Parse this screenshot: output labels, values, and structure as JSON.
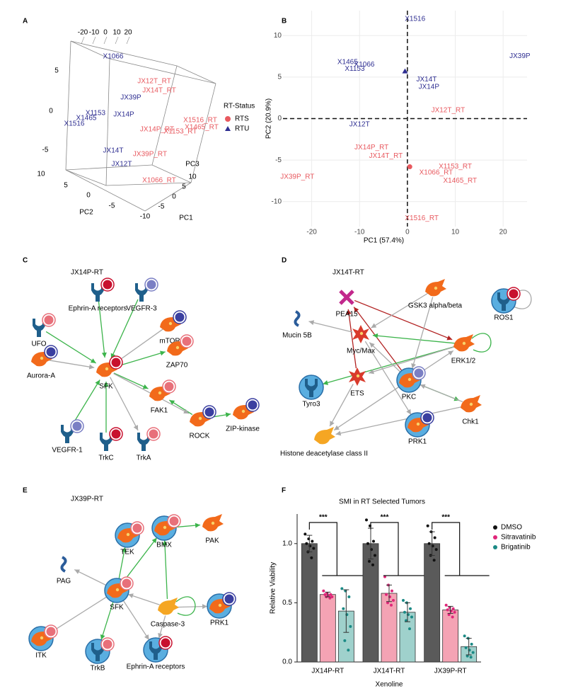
{
  "panel_labels": [
    "A",
    "B",
    "C",
    "D",
    "E",
    "F"
  ],
  "panel_a": {
    "type": "scatter3d-labels",
    "rtu_labels": [
      "X1066",
      "JX39P",
      "X1153",
      "X1465",
      "JX14P",
      "X1516",
      "JX14T",
      "JX12T"
    ],
    "rts_labels": [
      "JX12T_RT",
      "JX14T_RT",
      "X1516_RT",
      "X1465_RT",
      "JX14P_RT",
      "X1153_RT",
      "JX39P_RT",
      "X1066_RT"
    ],
    "axis_titles": [
      "PC1",
      "PC2",
      "PC3"
    ],
    "top_ticks": [
      -20,
      -10,
      0,
      10,
      20
    ],
    "pc3_ticks": [
      5,
      0,
      -5
    ],
    "pc2_ticks": [
      10,
      5,
      0,
      -5
    ],
    "pc1_ticks": [
      10,
      5,
      0,
      -5,
      -10
    ],
    "legend": {
      "title": "RT-Status",
      "entries": [
        {
          "name": "RTS",
          "color": "#e8595f",
          "marker": "circle"
        },
        {
          "name": "RTU",
          "color": "#2e2e91",
          "marker": "triangle"
        }
      ]
    }
  },
  "chart_data": [
    {
      "type": "scatter",
      "xlabel": "PC1 (57.4%)",
      "ylabel": "PC2 (20.9%)",
      "xlim": [
        -26,
        25
      ],
      "ylim": [
        -13,
        13
      ],
      "xticks": [
        -20,
        -10,
        0,
        10,
        20
      ],
      "yticks": [
        -10,
        -5,
        0,
        5,
        10
      ],
      "grid": true,
      "zero_lines": "dashed",
      "series": [
        {
          "color": "#2e2e91",
          "marker": "triangle",
          "labels": [
            "X1516",
            "X1465",
            "X1066",
            "X1153",
            "JX14T",
            "JX14P",
            "JX12T",
            "JX39P"
          ],
          "x": [
            1.6,
            -12.5,
            -9,
            -11,
            4,
            4.5,
            -10,
            23.5
          ],
          "y": [
            12,
            6.8,
            6.5,
            6,
            4.7,
            3.8,
            -0.7,
            7.5
          ],
          "centroid": [
            -0.5,
            5.7
          ]
        },
        {
          "color": "#e8595f",
          "marker": "circle",
          "labels": [
            "JX12T_RT",
            "JX14P_RT",
            "JX14T_RT",
            "X1153_RT",
            "X1066_RT",
            "X1465_RT",
            "JX39P_RT",
            "X1516_RT"
          ],
          "x": [
            8.5,
            -7.5,
            -4.5,
            10,
            6,
            11,
            -23,
            3
          ],
          "y": [
            1,
            -3.5,
            -4.5,
            -5.8,
            -6.5,
            -7.5,
            -7,
            -12
          ],
          "centroid": [
            0.5,
            -5.8
          ]
        }
      ]
    },
    {
      "type": "bar",
      "title": "SMI in RT Selected Tumors",
      "xlabel": "Xenoline",
      "ylabel": "Relative Viability",
      "categories": [
        "JX14P-RT",
        "JX14T-RT",
        "JX39P-RT"
      ],
      "ylim": [
        0,
        1.25
      ],
      "yticks": [
        {
          "value": 0,
          "label": "0.0"
        },
        {
          "value": 0.5,
          "label": "0.5"
        },
        {
          "value": 1,
          "label": "1.0"
        }
      ],
      "legend": "upper right",
      "annotations": [
        "***",
        "***",
        "***"
      ],
      "series": [
        {
          "name": "DMSO",
          "color": "#5a5a5a",
          "point_color": "#111111",
          "values": [
            1.0,
            1.0,
            1.0
          ],
          "errors": [
            0.07,
            0.13,
            0.1
          ],
          "points": [
            [
              1.08,
              1.04,
              1.02,
              1.0,
              0.98,
              0.96,
              0.93,
              0.88
            ],
            [
              1.2,
              1.15,
              1.02,
              1.0,
              0.95,
              0.9,
              0.85,
              0.82
            ],
            [
              1.15,
              1.1,
              1.05,
              1.0,
              0.98,
              0.95,
              0.9,
              0.86
            ]
          ]
        },
        {
          "name": "Sitravatinib",
          "color": "#f4a3b4",
          "point_color": "#e0267a",
          "values": [
            0.57,
            0.58,
            0.44
          ],
          "errors": [
            0.02,
            0.07,
            0.03
          ],
          "points": [
            [
              0.6,
              0.58,
              0.57,
              0.57,
              0.56,
              0.55,
              0.55,
              0.54
            ],
            [
              0.72,
              0.65,
              0.6,
              0.57,
              0.55,
              0.52,
              0.5,
              0.48
            ],
            [
              0.48,
              0.46,
              0.45,
              0.44,
              0.43,
              0.42,
              0.4,
              0.38
            ]
          ]
        },
        {
          "name": "Brigatinib",
          "color": "#9fd1cc",
          "point_color": "#1b8a85",
          "values": [
            0.43,
            0.42,
            0.13
          ],
          "errors": [
            0.18,
            0.08,
            0.07
          ],
          "points": [
            [
              0.62,
              0.6,
              0.55,
              0.45,
              0.4,
              0.3,
              0.18,
              0.1
            ],
            [
              0.52,
              0.5,
              0.45,
              0.42,
              0.4,
              0.38,
              0.35,
              0.28
            ],
            [
              0.22,
              0.2,
              0.15,
              0.12,
              0.1,
              0.08,
              0.05,
              0.04
            ]
          ]
        }
      ]
    }
  ],
  "shape_colors": {
    "receptor": "#1f5f8b",
    "kinase": "#f26a1b",
    "kinase-light": "#f5a623",
    "star": "#d93a2b",
    "wavy": "#2b5c9a",
    "cross": "#c2288c"
  },
  "networks": [
    {
      "title": "JX14P-RT",
      "nodes": [
        {
          "label": "UFO",
          "shape": "receptor",
          "badge": "#e8707a",
          "halo": false
        },
        {
          "label": "Ephrin-A receptors",
          "shape": "receptor",
          "badge": "#c8102e",
          "halo": false
        },
        {
          "label": "VEGFR-3",
          "shape": "receptor",
          "badge": "#7a7fc4",
          "halo": false
        },
        {
          "label": "mTOR",
          "shape": "kinase",
          "badge": "#3a3fa0",
          "halo": false
        },
        {
          "label": "ZAP70",
          "shape": "kinase",
          "badge": "#e8707a",
          "halo": false
        },
        {
          "label": "Aurora-A",
          "shape": "kinase",
          "badge": "#3a3fa0",
          "halo": false
        },
        {
          "label": "SFK",
          "shape": "kinase",
          "badge": "#c8102e",
          "halo": false
        },
        {
          "label": "FAK1",
          "shape": "kinase",
          "badge": "#e8707a",
          "halo": false
        },
        {
          "label": "ROCK",
          "shape": "kinase",
          "badge": "#3a3fa0",
          "halo": false
        },
        {
          "label": "ZIP-kinase",
          "shape": "kinase",
          "badge": "#3a3fa0",
          "halo": false
        },
        {
          "label": "VEGFR-1",
          "shape": "receptor",
          "badge": "#7a7fc4",
          "halo": false
        },
        {
          "label": "TrkC",
          "shape": "receptor",
          "badge": "#c8102e",
          "halo": false
        },
        {
          "label": "TrkA",
          "shape": "receptor",
          "badge": "#e8707a",
          "halo": false
        }
      ],
      "edges": [
        {
          "from": 0,
          "to": 6,
          "color": "#3cb44b"
        },
        {
          "from": 1,
          "to": 6,
          "color": "#3cb44b"
        },
        {
          "from": 2,
          "to": 6,
          "color": "#3cb44b"
        },
        {
          "from": 3,
          "to": 6,
          "color": "#aaaaaa"
        },
        {
          "from": 6,
          "to": 4,
          "color": "#3cb44b"
        },
        {
          "from": 5,
          "to": 6,
          "color": "#aaaaaa"
        },
        {
          "from": 6,
          "to": 7,
          "color": "#3cb44b"
        },
        {
          "from": 8,
          "to": 7,
          "color": "#3cb44b"
        },
        {
          "from": 8,
          "to": 9,
          "color": "#3cb44b"
        },
        {
          "from": 10,
          "to": 6,
          "color": "#3cb44b"
        },
        {
          "from": 11,
          "to": 6,
          "color": "#3cb44b"
        },
        {
          "from": 6,
          "to": 12,
          "color": "#aaaaaa"
        },
        {
          "from": 6,
          "to": 8,
          "color": "#aaaaaa"
        }
      ]
    },
    {
      "title": "JX14T-RT",
      "nodes": [
        {
          "label": "PEA15",
          "shape": "cross",
          "badge": null,
          "halo": false
        },
        {
          "label": "GSK3 alpha/beta",
          "shape": "kinase",
          "badge": null,
          "halo": false
        },
        {
          "label": "ROS1",
          "shape": "receptor",
          "badge": "#c8102e",
          "halo": true
        },
        {
          "label": "Mucin 5B",
          "shape": "wavy",
          "badge": null,
          "halo": false
        },
        {
          "label": "Myc/Max",
          "shape": "star",
          "badge": null,
          "halo": false
        },
        {
          "label": "ERK1/2",
          "shape": "kinase",
          "badge": null,
          "halo": false
        },
        {
          "label": "ETS",
          "shape": "star",
          "badge": null,
          "halo": false
        },
        {
          "label": "PKC",
          "shape": "kinase",
          "badge": "#7a7fc4",
          "halo": true
        },
        {
          "label": "Tyro3",
          "shape": "receptor",
          "badge": null,
          "halo": true
        },
        {
          "label": "Chk1",
          "shape": "kinase",
          "badge": null,
          "halo": false
        },
        {
          "label": "Histone deacetylase class II",
          "shape": "kinase-light",
          "badge": null,
          "halo": false
        },
        {
          "label": "PRK1",
          "shape": "kinase",
          "badge": "#3a3fa0",
          "halo": true
        }
      ],
      "edges": [
        {
          "from": 0,
          "to": 5,
          "color": "#b22222"
        },
        {
          "from": 7,
          "to": 0,
          "color": "#b22222"
        },
        {
          "from": 6,
          "to": 0,
          "color": "#b22222"
        },
        {
          "from": 5,
          "to": 4,
          "color": "#3cb44b"
        },
        {
          "from": 5,
          "to": 8,
          "color": "#3cb44b"
        },
        {
          "from": 1,
          "to": 4,
          "color": "#aaaaaa"
        },
        {
          "from": 1,
          "to": 7,
          "color": "#aaaaaa"
        },
        {
          "from": 4,
          "to": 3,
          "color": "#aaaaaa"
        },
        {
          "from": 7,
          "to": 4,
          "color": "#aaaaaa"
        },
        {
          "from": 4,
          "to": 11,
          "color": "#aaaaaa"
        },
        {
          "from": 7,
          "to": 10,
          "color": "#aaaaaa"
        },
        {
          "from": 6,
          "to": 10,
          "color": "#aaaaaa"
        },
        {
          "from": 9,
          "to": 10,
          "color": "#aaaaaa"
        },
        {
          "from": 7,
          "to": 9,
          "color": "#3cb44b"
        },
        {
          "from": 9,
          "to": 7,
          "color": "#aaaaaa"
        },
        {
          "from": 5,
          "to": 5,
          "color": "#3cb44b"
        },
        {
          "from": 2,
          "to": 2,
          "color": "#aaaaaa"
        },
        {
          "from": 5,
          "to": 6,
          "color": "#aaaaaa"
        },
        {
          "from": 7,
          "to": 5,
          "color": "#aaaaaa"
        }
      ]
    },
    {
      "title": "JX39P-RT",
      "nodes": [
        {
          "label": "TEK",
          "shape": "kinase",
          "badge": "#e8707a",
          "halo": true
        },
        {
          "label": "BMX",
          "shape": "kinase",
          "badge": "#e8707a",
          "halo": true
        },
        {
          "label": "PAK",
          "shape": "kinase",
          "badge": null,
          "halo": false
        },
        {
          "label": "PAG",
          "shape": "wavy",
          "badge": null,
          "halo": false
        },
        {
          "label": "SFK",
          "shape": "kinase",
          "badge": "#e8707a",
          "halo": true
        },
        {
          "label": "Caspase-3",
          "shape": "kinase-light",
          "badge": null,
          "halo": false
        },
        {
          "label": "PRK1",
          "shape": "kinase",
          "badge": "#3a3fa0",
          "halo": true
        },
        {
          "label": "ITK",
          "shape": "kinase",
          "badge": "#e8707a",
          "halo": true
        },
        {
          "label": "TrkB",
          "shape": "receptor",
          "badge": "#e8707a",
          "halo": true
        },
        {
          "label": "Ephrin-A receptors",
          "shape": "receptor",
          "badge": "#c8102e",
          "halo": true
        }
      ],
      "edges": [
        {
          "from": 4,
          "to": 0,
          "color": "#3cb44b"
        },
        {
          "from": 4,
          "to": 1,
          "color": "#3cb44b"
        },
        {
          "from": 1,
          "to": 2,
          "color": "#3cb44b"
        },
        {
          "from": 4,
          "to": 3,
          "color": "#aaaaaa"
        },
        {
          "from": 5,
          "to": 1,
          "color": "#3cb44b"
        },
        {
          "from": 5,
          "to": 4,
          "color": "#aaaaaa"
        },
        {
          "from": 5,
          "to": 6,
          "color": "#aaaaaa"
        },
        {
          "from": 5,
          "to": 5,
          "color": "#3cb44b"
        },
        {
          "from": 4,
          "to": 7,
          "color": "#aaaaaa"
        },
        {
          "from": 4,
          "to": 8,
          "color": "#3cb44b"
        },
        {
          "from": 4,
          "to": 9,
          "color": "#aaaaaa"
        },
        {
          "from": 5,
          "to": 9,
          "color": "#aaaaaa"
        }
      ]
    }
  ]
}
